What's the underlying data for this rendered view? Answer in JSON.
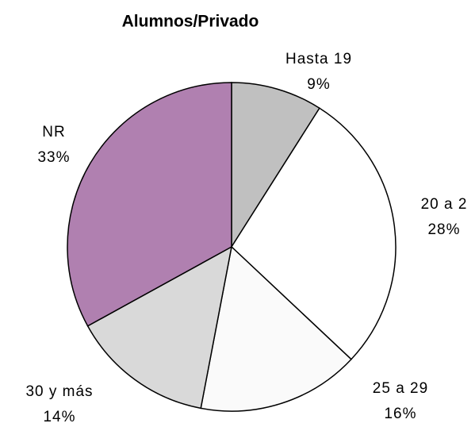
{
  "chart_data": {
    "type": "pie",
    "title": "Alumnos/Privado",
    "categories": [
      "Hasta 19",
      "20 a 2",
      "25 a 29",
      "30 y más",
      "NR"
    ],
    "values": [
      9,
      28,
      16,
      14,
      33
    ],
    "value_labels": [
      "9%",
      "28%",
      "16%",
      "14%",
      "33%"
    ],
    "colors": [
      "#c0c0c0",
      "#ffffff",
      "#fafafa",
      "#d9d9d9",
      "#b080b0"
    ]
  }
}
